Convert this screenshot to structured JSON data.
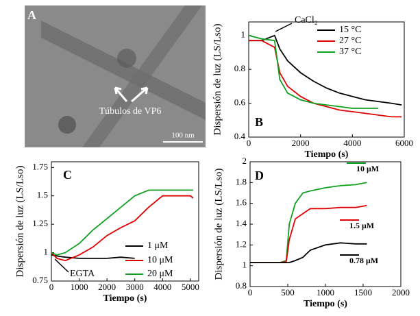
{
  "panel_a": {
    "label": "A",
    "caption": "Túbulos de VP6",
    "scale_bar": "100 nm"
  },
  "chart_data": [
    {
      "type": "line",
      "panel": "B",
      "annotation": "CaCl₂",
      "x_label": "Tiempo (s)",
      "y_label": "Dispersión de luz (LS/Lso)",
      "x": [
        0,
        500,
        1000,
        1200,
        1500,
        2000,
        2500,
        3000,
        3500,
        4000,
        4500,
        5000,
        5500,
        5900
      ],
      "series": [
        {
          "name": "15 °C",
          "color": "#000000",
          "values": [
            0.97,
            0.97,
            1.0,
            0.92,
            0.85,
            0.78,
            0.73,
            0.69,
            0.66,
            0.64,
            0.62,
            0.61,
            0.6,
            0.59
          ]
        },
        {
          "name": "27 °C",
          "color": "#e00000",
          "values": [
            0.97,
            0.97,
            0.93,
            0.78,
            0.7,
            0.64,
            0.6,
            0.58,
            0.56,
            0.55,
            0.54,
            0.53,
            0.52,
            0.52
          ]
        },
        {
          "name": "37 °C",
          "color": "#10a020",
          "values": [
            1.0,
            0.98,
            0.97,
            0.74,
            0.66,
            0.62,
            0.6,
            0.59,
            0.58,
            0.57,
            0.57,
            0.57,
            null,
            null
          ]
        }
      ],
      "xlim": [
        0,
        6000
      ],
      "xticks": [
        0,
        2000,
        4000,
        6000
      ],
      "ylim": [
        0.4,
        1.08
      ],
      "yticks": [
        0.4,
        0.6,
        0.8,
        1
      ]
    },
    {
      "type": "line",
      "panel": "C",
      "annotation": "EGTA",
      "x_label": "Tiempo (s)",
      "y_label": "Dispersión de luz (LS/Lso)",
      "x": [
        0,
        200,
        500,
        1000,
        1500,
        2000,
        2500,
        3000,
        3500,
        4000,
        4500,
        5000,
        5100
      ],
      "series": [
        {
          "name": "1 μM",
          "color": "#000000",
          "values": [
            0.98,
            0.97,
            0.96,
            0.95,
            0.95,
            0.95,
            0.96,
            0.95,
            null,
            null,
            null,
            null,
            null
          ]
        },
        {
          "name": "10 μM",
          "color": "#e00000",
          "values": [
            1.0,
            0.95,
            0.93,
            0.98,
            1.05,
            1.15,
            1.22,
            1.28,
            1.4,
            1.5,
            1.5,
            1.5,
            1.48
          ]
        },
        {
          "name": "20 μM",
          "color": "#10a020",
          "values": [
            1.0,
            0.98,
            1.0,
            1.08,
            1.2,
            1.3,
            1.4,
            1.5,
            1.55,
            1.55,
            1.55,
            1.55,
            1.55
          ]
        }
      ],
      "xlim": [
        0,
        5300
      ],
      "xticks": [
        0,
        1000,
        2000,
        3000,
        4000,
        5000
      ],
      "ylim": [
        0.75,
        1.8
      ],
      "yticks": [
        0.75,
        1,
        1.25,
        1.5,
        1.75
      ]
    },
    {
      "type": "line",
      "panel": "D",
      "x_label": "Tiempo (s)",
      "y_label": "Dispersión de luz (LS/Lso)",
      "x": [
        0,
        200,
        400,
        480,
        520,
        600,
        700,
        800,
        1000,
        1200,
        1400,
        1550
      ],
      "series": [
        {
          "name": "10 μM",
          "color": "#10a020",
          "values": [
            1.03,
            1.03,
            1.03,
            1.05,
            1.4,
            1.6,
            1.7,
            1.72,
            1.75,
            1.77,
            1.78,
            1.8
          ]
        },
        {
          "name": "1.5 μM",
          "color": "#e00000",
          "values": [
            1.03,
            1.03,
            1.03,
            1.04,
            1.25,
            1.45,
            1.5,
            1.55,
            1.55,
            1.56,
            1.56,
            1.58
          ]
        },
        {
          "name": "0.78 μM",
          "color": "#000000",
          "values": [
            1.03,
            1.03,
            1.03,
            1.03,
            1.03,
            1.05,
            1.08,
            1.15,
            1.2,
            1.22,
            1.21,
            1.21
          ]
        }
      ],
      "xlim": [
        0,
        2000
      ],
      "xticks": [
        0,
        500,
        1000,
        1500,
        2000
      ],
      "ylim": [
        0.8,
        2
      ],
      "yticks": [
        0.8,
        1,
        1.2,
        1.4,
        1.6,
        1.8,
        2
      ]
    }
  ]
}
